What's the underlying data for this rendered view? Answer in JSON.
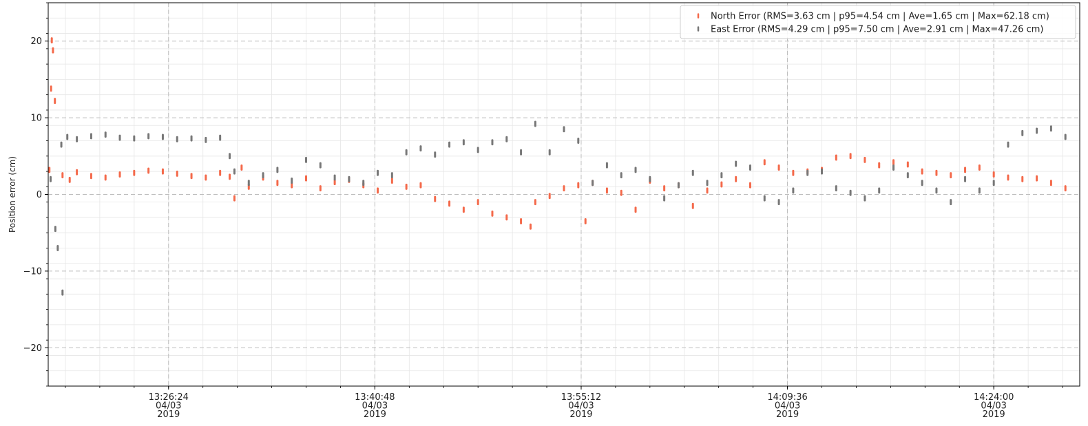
{
  "chart_data": {
    "type": "scatter",
    "title": "",
    "xlabel": "",
    "ylabel": "Position error (cm)",
    "xlim": [
      "2019-04-03 13:18:00",
      "2019-04-03 14:30:00"
    ],
    "ylim": [
      -25,
      25
    ],
    "y_ticks": [
      -20,
      -10,
      0,
      10,
      20
    ],
    "y_tick_labels": [
      "−20",
      "−10",
      "0",
      "10",
      "20"
    ],
    "x_ticks": [
      {
        "time": "2019-04-03 13:26:24",
        "lines": [
          "13:26:24",
          "04/03",
          "2019"
        ]
      },
      {
        "time": "2019-04-03 13:40:48",
        "lines": [
          "13:40:48",
          "04/03",
          "2019"
        ]
      },
      {
        "time": "2019-04-03 13:55:12",
        "lines": [
          "13:55:12",
          "04/03",
          "2019"
        ]
      },
      {
        "time": "2019-04-03 14:09:36",
        "lines": [
          "14:09:36",
          "04/03",
          "2019"
        ]
      },
      {
        "time": "2019-04-03 14:24:00",
        "lines": [
          "14:24:00",
          "04/03",
          "2019"
        ]
      }
    ],
    "grid": true,
    "legend_position": "top-right",
    "series": [
      {
        "name": "North Error (RMS=3.63 cm | p95=4.54 cm | Ave=1.65 cm | Max=62.18 cm)",
        "color": "#f4694a",
        "points": [
          [
            "2019-04-03 13:18:05",
            3.2
          ],
          [
            "2019-04-03 13:18:15",
            20.1
          ],
          [
            "2019-04-03 13:18:20",
            18.8
          ],
          [
            "2019-04-03 13:18:12",
            13.8
          ],
          [
            "2019-04-03 13:18:28",
            12.2
          ],
          [
            "2019-04-03 13:19:00",
            2.5
          ],
          [
            "2019-04-03 13:19:30",
            1.9
          ],
          [
            "2019-04-03 13:20:00",
            2.9
          ],
          [
            "2019-04-03 13:21:00",
            2.4
          ],
          [
            "2019-04-03 13:22:00",
            2.2
          ],
          [
            "2019-04-03 13:23:00",
            2.6
          ],
          [
            "2019-04-03 13:24:00",
            2.8
          ],
          [
            "2019-04-03 13:25:00",
            3.1
          ],
          [
            "2019-04-03 13:26:00",
            3.0
          ],
          [
            "2019-04-03 13:27:00",
            2.7
          ],
          [
            "2019-04-03 13:28:00",
            2.4
          ],
          [
            "2019-04-03 13:29:00",
            2.2
          ],
          [
            "2019-04-03 13:30:00",
            2.8
          ],
          [
            "2019-04-03 13:30:40",
            2.3
          ],
          [
            "2019-04-03 13:31:00",
            -0.5
          ],
          [
            "2019-04-03 13:31:30",
            3.5
          ],
          [
            "2019-04-03 13:32:00",
            1.0
          ],
          [
            "2019-04-03 13:33:00",
            2.2
          ],
          [
            "2019-04-03 13:34:00",
            1.5
          ],
          [
            "2019-04-03 13:35:00",
            1.2
          ],
          [
            "2019-04-03 13:36:00",
            2.1
          ],
          [
            "2019-04-03 13:37:00",
            0.8
          ],
          [
            "2019-04-03 13:38:00",
            1.6
          ],
          [
            "2019-04-03 13:39:00",
            1.9
          ],
          [
            "2019-04-03 13:40:00",
            1.2
          ],
          [
            "2019-04-03 13:41:00",
            0.5
          ],
          [
            "2019-04-03 13:42:00",
            1.8
          ],
          [
            "2019-04-03 13:43:00",
            1.0
          ],
          [
            "2019-04-03 13:44:00",
            1.2
          ],
          [
            "2019-04-03 13:45:00",
            -0.6
          ],
          [
            "2019-04-03 13:46:00",
            -1.2
          ],
          [
            "2019-04-03 13:47:00",
            -2.0
          ],
          [
            "2019-04-03 13:48:00",
            -1.0
          ],
          [
            "2019-04-03 13:49:00",
            -2.5
          ],
          [
            "2019-04-03 13:50:00",
            -3.0
          ],
          [
            "2019-04-03 13:51:00",
            -3.5
          ],
          [
            "2019-04-03 13:51:40",
            -4.2
          ],
          [
            "2019-04-03 13:52:00",
            -1.0
          ],
          [
            "2019-04-03 13:53:00",
            -0.2
          ],
          [
            "2019-04-03 13:54:00",
            0.8
          ],
          [
            "2019-04-03 13:55:00",
            1.2
          ],
          [
            "2019-04-03 13:55:30",
            -3.5
          ],
          [
            "2019-04-03 13:56:00",
            1.5
          ],
          [
            "2019-04-03 13:57:00",
            0.5
          ],
          [
            "2019-04-03 13:58:00",
            0.2
          ],
          [
            "2019-04-03 13:59:00",
            -2.0
          ],
          [
            "2019-04-03 14:00:00",
            1.8
          ],
          [
            "2019-04-03 14:01:00",
            0.8
          ],
          [
            "2019-04-03 14:02:00",
            1.2
          ],
          [
            "2019-04-03 14:03:00",
            -1.5
          ],
          [
            "2019-04-03 14:04:00",
            0.5
          ],
          [
            "2019-04-03 14:05:00",
            1.3
          ],
          [
            "2019-04-03 14:06:00",
            2.0
          ],
          [
            "2019-04-03 14:07:00",
            1.2
          ],
          [
            "2019-04-03 14:08:00",
            4.2
          ],
          [
            "2019-04-03 14:09:00",
            3.5
          ],
          [
            "2019-04-03 14:10:00",
            2.8
          ],
          [
            "2019-04-03 14:11:00",
            3.0
          ],
          [
            "2019-04-03 14:12:00",
            3.2
          ],
          [
            "2019-04-03 14:13:00",
            4.8
          ],
          [
            "2019-04-03 14:14:00",
            5.0
          ],
          [
            "2019-04-03 14:15:00",
            4.5
          ],
          [
            "2019-04-03 14:16:00",
            3.8
          ],
          [
            "2019-04-03 14:17:00",
            4.2
          ],
          [
            "2019-04-03 14:18:00",
            3.9
          ],
          [
            "2019-04-03 14:19:00",
            3.0
          ],
          [
            "2019-04-03 14:20:00",
            2.8
          ],
          [
            "2019-04-03 14:21:00",
            2.5
          ],
          [
            "2019-04-03 14:22:00",
            3.2
          ],
          [
            "2019-04-03 14:23:00",
            3.5
          ],
          [
            "2019-04-03 14:24:00",
            2.6
          ],
          [
            "2019-04-03 14:25:00",
            2.2
          ],
          [
            "2019-04-03 14:26:00",
            2.0
          ],
          [
            "2019-04-03 14:27:00",
            2.1
          ],
          [
            "2019-04-03 14:28:00",
            1.5
          ],
          [
            "2019-04-03 14:29:00",
            0.8
          ]
        ]
      },
      {
        "name": "East Error (RMS=4.29 cm | p95=7.50 cm | Ave=2.91 cm | Max=47.26 cm)",
        "color": "#777777",
        "points": [
          [
            "2019-04-03 13:18:10",
            2.0
          ],
          [
            "2019-04-03 13:18:30",
            -4.5
          ],
          [
            "2019-04-03 13:18:40",
            -7.0
          ],
          [
            "2019-04-03 13:18:55",
            6.5
          ],
          [
            "2019-04-03 13:19:00",
            -12.8
          ],
          [
            "2019-04-03 13:19:20",
            7.5
          ],
          [
            "2019-04-03 13:20:00",
            7.2
          ],
          [
            "2019-04-03 13:21:00",
            7.6
          ],
          [
            "2019-04-03 13:22:00",
            7.8
          ],
          [
            "2019-04-03 13:23:00",
            7.4
          ],
          [
            "2019-04-03 13:24:00",
            7.3
          ],
          [
            "2019-04-03 13:25:00",
            7.6
          ],
          [
            "2019-04-03 13:26:00",
            7.5
          ],
          [
            "2019-04-03 13:27:00",
            7.2
          ],
          [
            "2019-04-03 13:28:00",
            7.3
          ],
          [
            "2019-04-03 13:29:00",
            7.1
          ],
          [
            "2019-04-03 13:30:00",
            7.4
          ],
          [
            "2019-04-03 13:30:40",
            5.0
          ],
          [
            "2019-04-03 13:31:00",
            3.0
          ],
          [
            "2019-04-03 13:32:00",
            1.5
          ],
          [
            "2019-04-03 13:33:00",
            2.5
          ],
          [
            "2019-04-03 13:34:00",
            3.2
          ],
          [
            "2019-04-03 13:35:00",
            1.8
          ],
          [
            "2019-04-03 13:36:00",
            4.5
          ],
          [
            "2019-04-03 13:37:00",
            3.8
          ],
          [
            "2019-04-03 13:38:00",
            2.2
          ],
          [
            "2019-04-03 13:39:00",
            2.0
          ],
          [
            "2019-04-03 13:40:00",
            1.5
          ],
          [
            "2019-04-03 13:41:00",
            2.8
          ],
          [
            "2019-04-03 13:42:00",
            2.5
          ],
          [
            "2019-04-03 13:43:00",
            5.5
          ],
          [
            "2019-04-03 13:44:00",
            6.0
          ],
          [
            "2019-04-03 13:45:00",
            5.2
          ],
          [
            "2019-04-03 13:46:00",
            6.5
          ],
          [
            "2019-04-03 13:47:00",
            6.8
          ],
          [
            "2019-04-03 13:48:00",
            5.8
          ],
          [
            "2019-04-03 13:49:00",
            6.8
          ],
          [
            "2019-04-03 13:50:00",
            7.2
          ],
          [
            "2019-04-03 13:51:00",
            5.5
          ],
          [
            "2019-04-03 13:52:00",
            9.2
          ],
          [
            "2019-04-03 13:53:00",
            5.5
          ],
          [
            "2019-04-03 13:54:00",
            8.5
          ],
          [
            "2019-04-03 13:55:00",
            7.0
          ],
          [
            "2019-04-03 13:56:00",
            1.5
          ],
          [
            "2019-04-03 13:57:00",
            3.8
          ],
          [
            "2019-04-03 13:58:00",
            2.5
          ],
          [
            "2019-04-03 13:59:00",
            3.2
          ],
          [
            "2019-04-03 14:00:00",
            2.0
          ],
          [
            "2019-04-03 14:01:00",
            -0.5
          ],
          [
            "2019-04-03 14:02:00",
            1.2
          ],
          [
            "2019-04-03 14:03:00",
            2.8
          ],
          [
            "2019-04-03 14:04:00",
            1.5
          ],
          [
            "2019-04-03 14:05:00",
            2.5
          ],
          [
            "2019-04-03 14:06:00",
            4.0
          ],
          [
            "2019-04-03 14:07:00",
            3.5
          ],
          [
            "2019-04-03 14:08:00",
            -0.5
          ],
          [
            "2019-04-03 14:09:00",
            -1.0
          ],
          [
            "2019-04-03 14:10:00",
            0.5
          ],
          [
            "2019-04-03 14:11:00",
            2.8
          ],
          [
            "2019-04-03 14:12:00",
            3.0
          ],
          [
            "2019-04-03 14:13:00",
            0.8
          ],
          [
            "2019-04-03 14:14:00",
            0.2
          ],
          [
            "2019-04-03 14:15:00",
            -0.5
          ],
          [
            "2019-04-03 14:16:00",
            0.5
          ],
          [
            "2019-04-03 14:17:00",
            3.5
          ],
          [
            "2019-04-03 14:18:00",
            2.5
          ],
          [
            "2019-04-03 14:19:00",
            1.5
          ],
          [
            "2019-04-03 14:20:00",
            0.5
          ],
          [
            "2019-04-03 14:21:00",
            -1.0
          ],
          [
            "2019-04-03 14:22:00",
            2.0
          ],
          [
            "2019-04-03 14:23:00",
            0.5
          ],
          [
            "2019-04-03 14:24:00",
            1.5
          ],
          [
            "2019-04-03 14:25:00",
            6.5
          ],
          [
            "2019-04-03 14:26:00",
            8.0
          ],
          [
            "2019-04-03 14:27:00",
            8.3
          ],
          [
            "2019-04-03 14:28:00",
            8.6
          ],
          [
            "2019-04-03 14:29:00",
            7.5
          ]
        ]
      }
    ]
  }
}
